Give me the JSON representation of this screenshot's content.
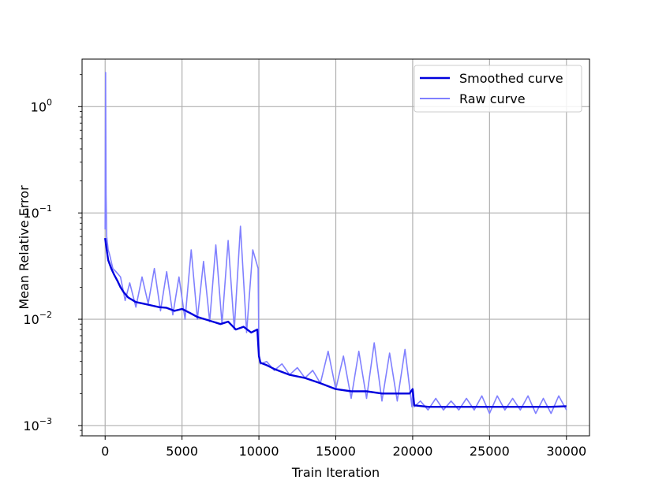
{
  "chart_data": {
    "type": "line",
    "title": "",
    "xlabel": "Train Iteration",
    "ylabel": "Mean Relative Error",
    "xlim": [
      -1500,
      31500
    ],
    "ylim": [
      0.0008,
      2.8
    ],
    "y_scale": "log",
    "grid": true,
    "legend_position": "top-right",
    "x_ticks": [
      0,
      5000,
      10000,
      15000,
      20000,
      25000,
      30000
    ],
    "x_tick_labels": [
      "0",
      "5000",
      "10000",
      "15000",
      "20000",
      "25000",
      "30000"
    ],
    "y_ticks": [
      0.001,
      0.01,
      0.1,
      1
    ],
    "y_tick_labels": [
      {
        "base": "10",
        "exp": "−3"
      },
      {
        "base": "10",
        "exp": "−2"
      },
      {
        "base": "10",
        "exp": "−1"
      },
      {
        "base": "10",
        "exp": "0"
      }
    ],
    "series": [
      {
        "name": "Smoothed curve",
        "color": "#0000dd",
        "x": [
          0,
          100,
          200,
          400,
          600,
          800,
          1000,
          1200,
          1500,
          2000,
          2500,
          3000,
          3500,
          4000,
          4500,
          5000,
          5500,
          6000,
          6500,
          7000,
          7500,
          8000,
          8500,
          9000,
          9500,
          9900,
          10000,
          10100,
          10500,
          11000,
          12000,
          13000,
          14000,
          15000,
          16000,
          17000,
          18000,
          19000,
          19800,
          20000,
          20100,
          21000,
          22000,
          23000,
          24000,
          25000,
          26000,
          27000,
          28000,
          29000,
          30000
        ],
        "y": [
          0.058,
          0.045,
          0.036,
          0.03,
          0.026,
          0.023,
          0.02,
          0.018,
          0.016,
          0.0145,
          0.014,
          0.0135,
          0.013,
          0.0128,
          0.012,
          0.0125,
          0.0115,
          0.0105,
          0.01,
          0.0095,
          0.009,
          0.0095,
          0.008,
          0.0085,
          0.0075,
          0.008,
          0.0045,
          0.0039,
          0.0037,
          0.0034,
          0.003,
          0.0028,
          0.0025,
          0.0022,
          0.0021,
          0.0021,
          0.002,
          0.002,
          0.002,
          0.0022,
          0.00155,
          0.0015,
          0.0015,
          0.0015,
          0.0015,
          0.0015,
          0.0015,
          0.0015,
          0.0015,
          0.0015,
          0.00152
        ]
      },
      {
        "name": "Raw curve",
        "color": "#8080ff",
        "x": [
          0,
          30,
          60,
          100,
          200,
          300,
          500,
          700,
          1000,
          1300,
          1600,
          2000,
          2400,
          2800,
          3200,
          3600,
          4000,
          4400,
          4800,
          5200,
          5600,
          6000,
          6400,
          6800,
          7200,
          7600,
          8000,
          8400,
          8800,
          9200,
          9600,
          9950,
          10000,
          10100,
          10500,
          11000,
          11500,
          12000,
          12500,
          13000,
          13500,
          14000,
          14500,
          15000,
          15500,
          16000,
          16500,
          17000,
          17500,
          18000,
          18500,
          19000,
          19500,
          19950,
          20000,
          20100,
          20500,
          21000,
          21500,
          22000,
          22500,
          23000,
          23500,
          24000,
          24500,
          25000,
          25500,
          26000,
          26500,
          27000,
          27500,
          28000,
          28500,
          29000,
          29500,
          30000
        ],
        "y": [
          0.07,
          2.1,
          0.15,
          0.06,
          0.045,
          0.04,
          0.03,
          0.028,
          0.025,
          0.015,
          0.022,
          0.013,
          0.025,
          0.014,
          0.03,
          0.012,
          0.028,
          0.011,
          0.025,
          0.01,
          0.045,
          0.01,
          0.035,
          0.0095,
          0.05,
          0.009,
          0.055,
          0.008,
          0.075,
          0.0075,
          0.045,
          0.03,
          0.0045,
          0.0038,
          0.004,
          0.0033,
          0.0038,
          0.003,
          0.0035,
          0.0028,
          0.0033,
          0.0025,
          0.005,
          0.0022,
          0.0045,
          0.0018,
          0.005,
          0.0018,
          0.006,
          0.0017,
          0.0048,
          0.0017,
          0.0052,
          0.0015,
          0.0022,
          0.0015,
          0.0017,
          0.0014,
          0.0018,
          0.0014,
          0.0017,
          0.0014,
          0.0018,
          0.0014,
          0.0019,
          0.0013,
          0.0019,
          0.0014,
          0.0018,
          0.0014,
          0.0019,
          0.0013,
          0.0018,
          0.0013,
          0.0019,
          0.0014
        ]
      }
    ]
  }
}
